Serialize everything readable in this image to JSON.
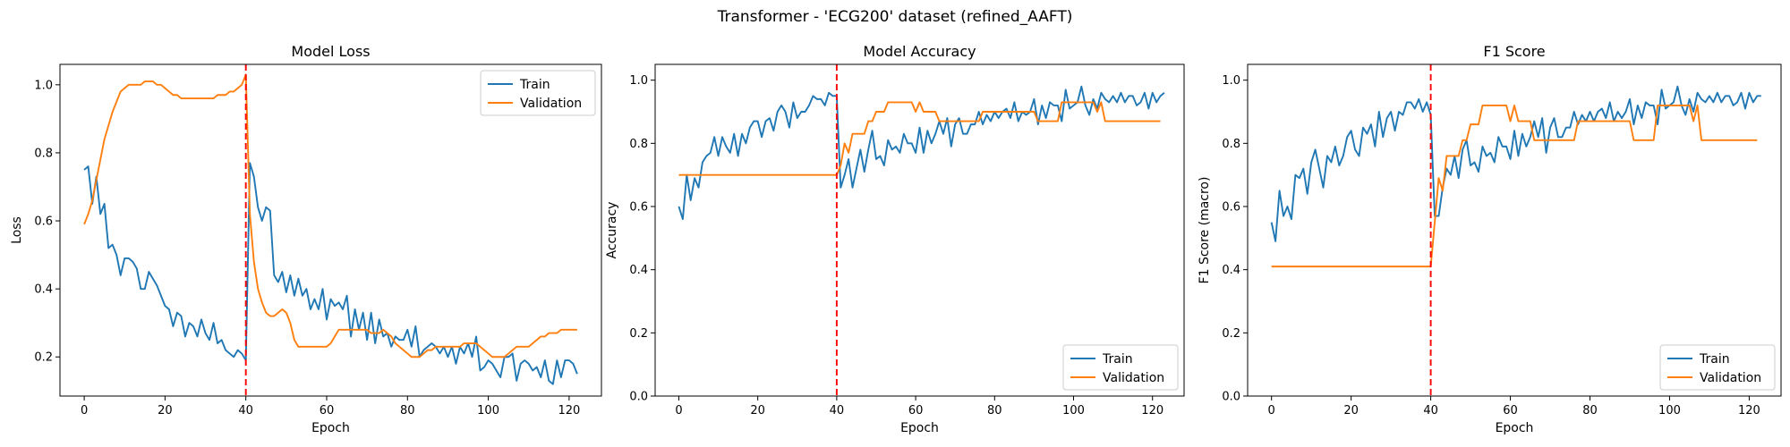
{
  "suptitle": "Transformer - 'ECG200' dataset (refined_AAFT)",
  "colors": {
    "train": "#1f77b4",
    "validation": "#ff7f0e",
    "marker": "#ff0000"
  },
  "chart_data": [
    {
      "type": "line",
      "title": "Model Loss",
      "xlabel": "Epoch",
      "ylabel": "Loss",
      "xlim": [
        -6,
        128
      ],
      "ylim": [
        0.085,
        1.06
      ],
      "xticks": [
        0,
        20,
        40,
        60,
        80,
        100,
        120
      ],
      "yticks": [
        0.2,
        0.4,
        0.6,
        0.8,
        1.0
      ],
      "ytick_labels": [
        "0.2",
        "0.4",
        "0.6",
        "0.8",
        "1.0"
      ],
      "vline_x": 40,
      "legend": "top-right",
      "series": [
        {
          "name": "Train",
          "values": [
            0.75,
            0.76,
            0.65,
            0.73,
            0.62,
            0.65,
            0.52,
            0.53,
            0.5,
            0.44,
            0.49,
            0.49,
            0.48,
            0.46,
            0.4,
            0.4,
            0.45,
            0.43,
            0.41,
            0.38,
            0.35,
            0.34,
            0.29,
            0.33,
            0.32,
            0.26,
            0.3,
            0.29,
            0.26,
            0.31,
            0.27,
            0.25,
            0.3,
            0.24,
            0.25,
            0.22,
            0.21,
            0.2,
            0.22,
            0.21,
            0.19,
            0.77,
            0.73,
            0.64,
            0.6,
            0.64,
            0.63,
            0.44,
            0.42,
            0.45,
            0.39,
            0.44,
            0.38,
            0.43,
            0.38,
            0.4,
            0.34,
            0.37,
            0.34,
            0.4,
            0.31,
            0.37,
            0.35,
            0.36,
            0.34,
            0.38,
            0.26,
            0.34,
            0.28,
            0.33,
            0.25,
            0.33,
            0.24,
            0.31,
            0.26,
            0.27,
            0.23,
            0.26,
            0.25,
            0.25,
            0.28,
            0.23,
            0.29,
            0.2,
            0.22,
            0.23,
            0.24,
            0.23,
            0.21,
            0.23,
            0.2,
            0.23,
            0.18,
            0.23,
            0.21,
            0.24,
            0.2,
            0.26,
            0.16,
            0.17,
            0.19,
            0.18,
            0.16,
            0.14,
            0.2,
            0.2,
            0.21,
            0.13,
            0.18,
            0.19,
            0.18,
            0.16,
            0.17,
            0.14,
            0.19,
            0.13,
            0.12,
            0.19,
            0.14,
            0.19,
            0.19,
            0.18,
            0.15
          ]
        },
        {
          "name": "Validation",
          "values": [
            0.59,
            0.62,
            0.66,
            0.72,
            0.78,
            0.84,
            0.88,
            0.92,
            0.95,
            0.98,
            0.99,
            1.0,
            1.0,
            1.0,
            1.0,
            1.01,
            1.01,
            1.01,
            1.0,
            1.0,
            0.99,
            0.98,
            0.97,
            0.97,
            0.96,
            0.96,
            0.96,
            0.96,
            0.96,
            0.96,
            0.96,
            0.96,
            0.96,
            0.97,
            0.97,
            0.97,
            0.98,
            0.98,
            0.99,
            1.0,
            1.03,
            0.62,
            0.48,
            0.4,
            0.36,
            0.33,
            0.32,
            0.32,
            0.33,
            0.34,
            0.33,
            0.3,
            0.25,
            0.23,
            0.23,
            0.23,
            0.23,
            0.23,
            0.23,
            0.23,
            0.23,
            0.24,
            0.26,
            0.28,
            0.28,
            0.28,
            0.28,
            0.28,
            0.28,
            0.28,
            0.28,
            0.27,
            0.27,
            0.27,
            0.28,
            0.27,
            0.26,
            0.24,
            0.23,
            0.22,
            0.21,
            0.2,
            0.2,
            0.2,
            0.21,
            0.22,
            0.22,
            0.23,
            0.23,
            0.23,
            0.23,
            0.23,
            0.23,
            0.23,
            0.24,
            0.24,
            0.24,
            0.24,
            0.23,
            0.22,
            0.21,
            0.2,
            0.2,
            0.2,
            0.2,
            0.21,
            0.22,
            0.23,
            0.23,
            0.23,
            0.23,
            0.24,
            0.25,
            0.26,
            0.26,
            0.27,
            0.27,
            0.27,
            0.28,
            0.28,
            0.28,
            0.28,
            0.28
          ]
        }
      ]
    },
    {
      "type": "line",
      "title": "Model Accuracy",
      "xlabel": "Epoch",
      "ylabel": "Accuracy",
      "xlim": [
        -6,
        128
      ],
      "ylim": [
        0,
        1.05
      ],
      "xticks": [
        0,
        20,
        40,
        60,
        80,
        100,
        120
      ],
      "yticks": [
        0,
        0.2,
        0.4,
        0.6,
        0.8,
        1.0
      ],
      "ytick_labels": [
        "0.0",
        "0.2",
        "0.4",
        "0.6",
        "0.8",
        "1.0"
      ],
      "vline_x": 40,
      "legend": "bottom-right",
      "series": [
        {
          "name": "Train",
          "values": [
            0.6,
            0.56,
            0.7,
            0.62,
            0.69,
            0.66,
            0.74,
            0.76,
            0.77,
            0.82,
            0.76,
            0.82,
            0.79,
            0.77,
            0.83,
            0.76,
            0.83,
            0.8,
            0.85,
            0.87,
            0.87,
            0.82,
            0.87,
            0.88,
            0.84,
            0.9,
            0.92,
            0.9,
            0.85,
            0.93,
            0.88,
            0.9,
            0.9,
            0.92,
            0.95,
            0.94,
            0.94,
            0.92,
            0.96,
            0.95,
            0.95,
            0.66,
            0.7,
            0.75,
            0.66,
            0.72,
            0.78,
            0.71,
            0.78,
            0.84,
            0.75,
            0.76,
            0.73,
            0.81,
            0.78,
            0.79,
            0.77,
            0.83,
            0.8,
            0.8,
            0.77,
            0.85,
            0.77,
            0.84,
            0.8,
            0.83,
            0.87,
            0.83,
            0.88,
            0.79,
            0.86,
            0.88,
            0.83,
            0.83,
            0.86,
            0.86,
            0.9,
            0.86,
            0.89,
            0.87,
            0.9,
            0.88,
            0.9,
            0.91,
            0.88,
            0.93,
            0.87,
            0.9,
            0.89,
            0.9,
            0.94,
            0.86,
            0.92,
            0.88,
            0.93,
            0.92,
            0.92,
            0.87,
            0.97,
            0.91,
            0.92,
            0.93,
            0.98,
            0.92,
            0.89,
            0.94,
            0.91,
            0.96,
            0.94,
            0.93,
            0.95,
            0.93,
            0.96,
            0.93,
            0.95,
            0.95,
            0.92,
            0.93,
            0.96,
            0.91,
            0.96,
            0.93,
            0.95,
            0.96
          ]
        },
        {
          "name": "Validation",
          "values": [
            0.7,
            0.7,
            0.7,
            0.7,
            0.7,
            0.7,
            0.7,
            0.7,
            0.7,
            0.7,
            0.7,
            0.7,
            0.7,
            0.7,
            0.7,
            0.7,
            0.7,
            0.7,
            0.7,
            0.7,
            0.7,
            0.7,
            0.7,
            0.7,
            0.7,
            0.7,
            0.7,
            0.7,
            0.7,
            0.7,
            0.7,
            0.7,
            0.7,
            0.7,
            0.7,
            0.7,
            0.7,
            0.7,
            0.7,
            0.7,
            0.7,
            0.73,
            0.8,
            0.77,
            0.83,
            0.83,
            0.83,
            0.83,
            0.87,
            0.87,
            0.9,
            0.9,
            0.9,
            0.93,
            0.93,
            0.93,
            0.93,
            0.93,
            0.93,
            0.93,
            0.9,
            0.93,
            0.9,
            0.9,
            0.9,
            0.9,
            0.87,
            0.87,
            0.87,
            0.87,
            0.87,
            0.87,
            0.87,
            0.87,
            0.87,
            0.87,
            0.87,
            0.9,
            0.9,
            0.9,
            0.9,
            0.9,
            0.9,
            0.9,
            0.9,
            0.9,
            0.9,
            0.9,
            0.9,
            0.9,
            0.9,
            0.87,
            0.87,
            0.87,
            0.87,
            0.87,
            0.87,
            0.93,
            0.93,
            0.93,
            0.93,
            0.93,
            0.93,
            0.93,
            0.93,
            0.93,
            0.9,
            0.93,
            0.87,
            0.87,
            0.87,
            0.87,
            0.87,
            0.87,
            0.87,
            0.87,
            0.87,
            0.87,
            0.87,
            0.87,
            0.87,
            0.87,
            0.87
          ]
        }
      ]
    },
    {
      "type": "line",
      "title": "F1 Score",
      "xlabel": "Epoch",
      "ylabel": "F1 Score (macro)",
      "xlim": [
        -6,
        128
      ],
      "ylim": [
        0,
        1.05
      ],
      "xticks": [
        0,
        20,
        40,
        60,
        80,
        100,
        120
      ],
      "yticks": [
        0,
        0.2,
        0.4,
        0.6,
        0.8,
        1.0
      ],
      "ytick_labels": [
        "0.0",
        "0.2",
        "0.4",
        "0.6",
        "0.8",
        "1.0"
      ],
      "vline_x": 40,
      "legend": "bottom-right",
      "series": [
        {
          "name": "Train",
          "values": [
            0.55,
            0.49,
            0.65,
            0.57,
            0.6,
            0.56,
            0.7,
            0.69,
            0.72,
            0.64,
            0.74,
            0.78,
            0.72,
            0.66,
            0.76,
            0.74,
            0.79,
            0.73,
            0.76,
            0.82,
            0.84,
            0.78,
            0.76,
            0.85,
            0.83,
            0.86,
            0.79,
            0.9,
            0.82,
            0.88,
            0.9,
            0.84,
            0.9,
            0.89,
            0.93,
            0.93,
            0.91,
            0.94,
            0.9,
            0.93,
            0.89,
            0.57,
            0.57,
            0.66,
            0.72,
            0.7,
            0.76,
            0.69,
            0.78,
            0.81,
            0.73,
            0.74,
            0.71,
            0.79,
            0.76,
            0.77,
            0.74,
            0.82,
            0.79,
            0.79,
            0.75,
            0.84,
            0.76,
            0.83,
            0.79,
            0.82,
            0.87,
            0.82,
            0.88,
            0.77,
            0.85,
            0.88,
            0.82,
            0.82,
            0.85,
            0.85,
            0.9,
            0.86,
            0.89,
            0.87,
            0.9,
            0.87,
            0.9,
            0.91,
            0.88,
            0.93,
            0.87,
            0.9,
            0.88,
            0.9,
            0.94,
            0.86,
            0.92,
            0.88,
            0.93,
            0.92,
            0.92,
            0.86,
            0.97,
            0.91,
            0.92,
            0.93,
            0.98,
            0.92,
            0.89,
            0.94,
            0.9,
            0.96,
            0.94,
            0.93,
            0.95,
            0.93,
            0.96,
            0.93,
            0.95,
            0.95,
            0.92,
            0.93,
            0.96,
            0.91,
            0.96,
            0.93,
            0.95,
            0.95
          ]
        },
        {
          "name": "Validation",
          "values": [
            0.41,
            0.41,
            0.41,
            0.41,
            0.41,
            0.41,
            0.41,
            0.41,
            0.41,
            0.41,
            0.41,
            0.41,
            0.41,
            0.41,
            0.41,
            0.41,
            0.41,
            0.41,
            0.41,
            0.41,
            0.41,
            0.41,
            0.41,
            0.41,
            0.41,
            0.41,
            0.41,
            0.41,
            0.41,
            0.41,
            0.41,
            0.41,
            0.41,
            0.41,
            0.41,
            0.41,
            0.41,
            0.41,
            0.41,
            0.41,
            0.41,
            0.55,
            0.69,
            0.65,
            0.76,
            0.76,
            0.76,
            0.76,
            0.81,
            0.81,
            0.86,
            0.86,
            0.86,
            0.92,
            0.92,
            0.92,
            0.92,
            0.92,
            0.92,
            0.92,
            0.87,
            0.92,
            0.87,
            0.87,
            0.87,
            0.87,
            0.81,
            0.81,
            0.81,
            0.81,
            0.81,
            0.81,
            0.81,
            0.81,
            0.81,
            0.81,
            0.81,
            0.87,
            0.87,
            0.87,
            0.87,
            0.87,
            0.87,
            0.87,
            0.87,
            0.87,
            0.87,
            0.87,
            0.87,
            0.87,
            0.87,
            0.81,
            0.81,
            0.81,
            0.81,
            0.81,
            0.81,
            0.92,
            0.92,
            0.92,
            0.92,
            0.92,
            0.92,
            0.92,
            0.92,
            0.92,
            0.87,
            0.92,
            0.81,
            0.81,
            0.81,
            0.81,
            0.81,
            0.81,
            0.81,
            0.81,
            0.81,
            0.81,
            0.81,
            0.81,
            0.81,
            0.81,
            0.81
          ]
        }
      ]
    }
  ]
}
